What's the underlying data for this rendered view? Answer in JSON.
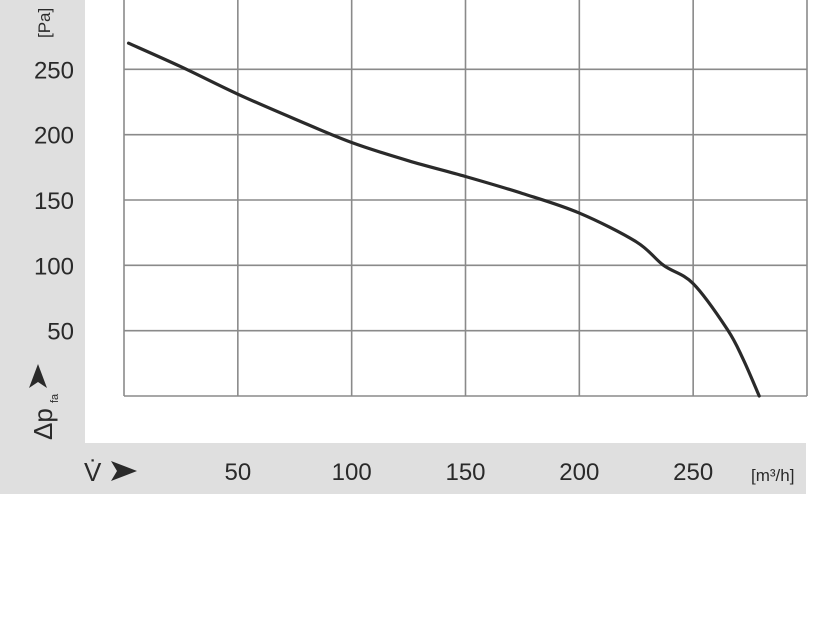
{
  "chart_data": {
    "type": "line",
    "title": "",
    "xlabel": "V̇",
    "xunit": "[m³/h]",
    "ylabel": "Δp",
    "ylabel_subscript": "fa",
    "yunit": "[Pa]",
    "xlim": [
      0,
      300
    ],
    "ylim": [
      0,
      300
    ],
    "x_ticks": [
      50,
      100,
      150,
      200,
      250
    ],
    "y_ticks": [
      50,
      100,
      150,
      200,
      250
    ],
    "grid": true,
    "series": [
      {
        "color": "#2a2a2a",
        "points": [
          [
            2,
            270
          ],
          [
            25,
            252
          ],
          [
            50,
            231
          ],
          [
            75,
            212
          ],
          [
            100,
            194
          ],
          [
            125,
            180
          ],
          [
            150,
            168
          ],
          [
            175,
            155
          ],
          [
            200,
            140
          ],
          [
            225,
            118
          ],
          [
            237,
            100
          ],
          [
            250,
            86
          ],
          [
            265,
            51
          ],
          [
            272,
            28
          ],
          [
            279,
            0
          ]
        ]
      }
    ]
  },
  "colors": {
    "band": "#dfdfdf",
    "grid": "#8a8a8a",
    "curve": "#2a2a2a"
  }
}
